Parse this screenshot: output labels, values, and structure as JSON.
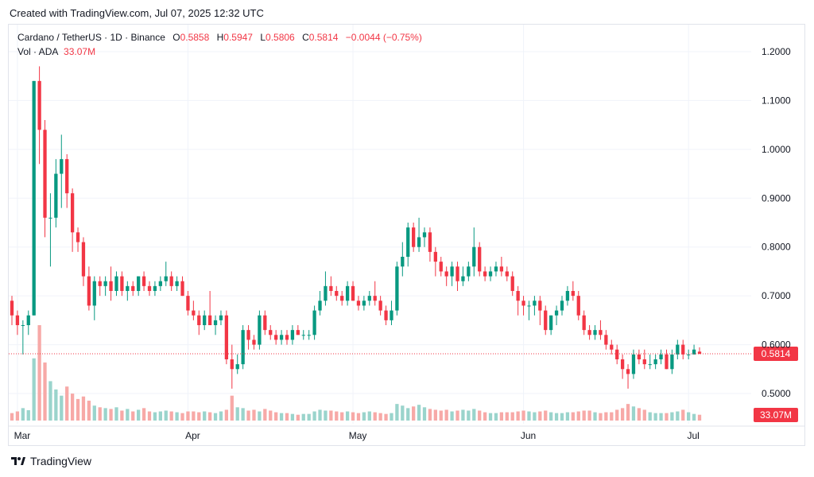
{
  "header": {
    "created_text": "Created with TradingView.com, Jul 07, 2025 12:32 UTC"
  },
  "legend": {
    "symbol": "Cardano / TetherUS · 1D · Binance",
    "open_label": "O",
    "open": "0.5858",
    "high_label": "H",
    "high": "0.5947",
    "low_label": "L",
    "low": "0.5806",
    "close_label": "C",
    "close": "0.5814",
    "change": "−0.0044 (−0.75%)",
    "vol_label": "Vol · ADA",
    "vol_value": "33.07M"
  },
  "footer": {
    "brand": "TradingView"
  },
  "colors": {
    "up": "#089981",
    "down": "#f23645",
    "up_vol": "#9ad4cc",
    "down_vol": "#f7a9a7",
    "grid": "#f0f3fa",
    "text": "#131722"
  },
  "chart_data": {
    "type": "candlestick",
    "title": "Cardano / TetherUS · 1D · Binance",
    "x_ticks": [
      "Mar",
      "Apr",
      "May",
      "Jun",
      "Jul"
    ],
    "y_ticks": [
      "1.2000",
      "1.1000",
      "1.0000",
      "0.9000",
      "0.8000",
      "0.7000",
      "0.6000",
      "0.5000"
    ],
    "ylim": [
      0.46,
      1.25
    ],
    "grid": true,
    "last_price": "0.5814",
    "last_volume": "33.07M",
    "series": [
      {
        "name": "Cardano / TetherUS",
        "ohlc": [
          [
            0.69,
            0.7,
            0.64,
            0.66
          ],
          [
            0.66,
            0.67,
            0.62,
            0.64
          ],
          [
            0.64,
            0.65,
            0.58,
            0.64
          ],
          [
            0.64,
            0.67,
            0.62,
            0.66
          ],
          [
            0.66,
            1.14,
            0.66,
            1.14
          ],
          [
            1.14,
            1.17,
            0.97,
            1.04
          ],
          [
            1.04,
            1.06,
            0.82,
            0.86
          ],
          [
            0.86,
            0.91,
            0.76,
            0.86
          ],
          [
            0.86,
            0.98,
            0.84,
            0.95
          ],
          [
            0.95,
            1.03,
            0.88,
            0.98
          ],
          [
            0.98,
            0.99,
            0.88,
            0.91
          ],
          [
            0.91,
            0.92,
            0.79,
            0.83
          ],
          [
            0.83,
            0.84,
            0.79,
            0.81
          ],
          [
            0.81,
            0.82,
            0.72,
            0.74
          ],
          [
            0.74,
            0.76,
            0.67,
            0.68
          ],
          [
            0.68,
            0.74,
            0.65,
            0.73
          ],
          [
            0.73,
            0.74,
            0.7,
            0.72
          ],
          [
            0.72,
            0.74,
            0.7,
            0.73
          ],
          [
            0.73,
            0.76,
            0.69,
            0.71
          ],
          [
            0.71,
            0.75,
            0.7,
            0.74
          ],
          [
            0.74,
            0.75,
            0.7,
            0.71
          ],
          [
            0.71,
            0.73,
            0.69,
            0.72
          ],
          [
            0.72,
            0.73,
            0.7,
            0.71
          ],
          [
            0.71,
            0.74,
            0.7,
            0.74
          ],
          [
            0.74,
            0.75,
            0.71,
            0.72
          ],
          [
            0.72,
            0.73,
            0.7,
            0.71
          ],
          [
            0.71,
            0.73,
            0.7,
            0.72
          ],
          [
            0.72,
            0.74,
            0.71,
            0.73
          ],
          [
            0.73,
            0.77,
            0.72,
            0.74
          ],
          [
            0.74,
            0.75,
            0.71,
            0.72
          ],
          [
            0.72,
            0.74,
            0.71,
            0.73
          ],
          [
            0.73,
            0.74,
            0.7,
            0.7
          ],
          [
            0.7,
            0.71,
            0.66,
            0.67
          ],
          [
            0.67,
            0.69,
            0.65,
            0.66
          ],
          [
            0.66,
            0.67,
            0.62,
            0.64
          ],
          [
            0.64,
            0.67,
            0.63,
            0.66
          ],
          [
            0.66,
            0.71,
            0.64,
            0.64
          ],
          [
            0.64,
            0.66,
            0.62,
            0.65
          ],
          [
            0.65,
            0.67,
            0.64,
            0.66
          ],
          [
            0.66,
            0.67,
            0.56,
            0.57
          ],
          [
            0.57,
            0.6,
            0.51,
            0.55
          ],
          [
            0.55,
            0.58,
            0.54,
            0.56
          ],
          [
            0.56,
            0.64,
            0.55,
            0.63
          ],
          [
            0.63,
            0.64,
            0.59,
            0.61
          ],
          [
            0.61,
            0.62,
            0.59,
            0.6
          ],
          [
            0.6,
            0.67,
            0.59,
            0.66
          ],
          [
            0.66,
            0.67,
            0.62,
            0.63
          ],
          [
            0.63,
            0.64,
            0.61,
            0.62
          ],
          [
            0.62,
            0.63,
            0.6,
            0.61
          ],
          [
            0.61,
            0.63,
            0.6,
            0.62
          ],
          [
            0.62,
            0.63,
            0.6,
            0.61
          ],
          [
            0.61,
            0.64,
            0.6,
            0.63
          ],
          [
            0.63,
            0.64,
            0.62,
            0.62
          ],
          [
            0.62,
            0.63,
            0.61,
            0.62
          ],
          [
            0.62,
            0.63,
            0.61,
            0.62
          ],
          [
            0.62,
            0.68,
            0.61,
            0.67
          ],
          [
            0.67,
            0.71,
            0.66,
            0.69
          ],
          [
            0.69,
            0.75,
            0.68,
            0.72
          ],
          [
            0.72,
            0.74,
            0.7,
            0.71
          ],
          [
            0.71,
            0.72,
            0.69,
            0.7
          ],
          [
            0.7,
            0.71,
            0.68,
            0.69
          ],
          [
            0.69,
            0.73,
            0.68,
            0.72
          ],
          [
            0.72,
            0.73,
            0.69,
            0.69
          ],
          [
            0.69,
            0.7,
            0.67,
            0.68
          ],
          [
            0.68,
            0.7,
            0.67,
            0.69
          ],
          [
            0.69,
            0.71,
            0.68,
            0.7
          ],
          [
            0.7,
            0.73,
            0.68,
            0.69
          ],
          [
            0.69,
            0.7,
            0.66,
            0.67
          ],
          [
            0.67,
            0.68,
            0.64,
            0.65
          ],
          [
            0.65,
            0.69,
            0.64,
            0.67
          ],
          [
            0.67,
            0.77,
            0.66,
            0.76
          ],
          [
            0.76,
            0.81,
            0.74,
            0.78
          ],
          [
            0.78,
            0.85,
            0.76,
            0.84
          ],
          [
            0.84,
            0.85,
            0.79,
            0.8
          ],
          [
            0.8,
            0.86,
            0.79,
            0.82
          ],
          [
            0.82,
            0.84,
            0.8,
            0.83
          ],
          [
            0.83,
            0.84,
            0.77,
            0.79
          ],
          [
            0.79,
            0.8,
            0.74,
            0.77
          ],
          [
            0.77,
            0.78,
            0.74,
            0.75
          ],
          [
            0.75,
            0.76,
            0.72,
            0.74
          ],
          [
            0.74,
            0.77,
            0.72,
            0.76
          ],
          [
            0.76,
            0.77,
            0.71,
            0.73
          ],
          [
            0.73,
            0.76,
            0.72,
            0.74
          ],
          [
            0.74,
            0.77,
            0.73,
            0.76
          ],
          [
            0.76,
            0.84,
            0.74,
            0.8
          ],
          [
            0.8,
            0.81,
            0.74,
            0.75
          ],
          [
            0.75,
            0.76,
            0.73,
            0.74
          ],
          [
            0.74,
            0.76,
            0.73,
            0.75
          ],
          [
            0.75,
            0.77,
            0.74,
            0.76
          ],
          [
            0.76,
            0.78,
            0.74,
            0.75
          ],
          [
            0.75,
            0.76,
            0.73,
            0.74
          ],
          [
            0.74,
            0.75,
            0.7,
            0.71
          ],
          [
            0.71,
            0.72,
            0.66,
            0.69
          ],
          [
            0.69,
            0.7,
            0.66,
            0.68
          ],
          [
            0.68,
            0.69,
            0.65,
            0.68
          ],
          [
            0.68,
            0.7,
            0.66,
            0.69
          ],
          [
            0.69,
            0.7,
            0.64,
            0.67
          ],
          [
            0.67,
            0.68,
            0.62,
            0.63
          ],
          [
            0.63,
            0.66,
            0.62,
            0.66
          ],
          [
            0.66,
            0.68,
            0.64,
            0.67
          ],
          [
            0.67,
            0.7,
            0.66,
            0.69
          ],
          [
            0.69,
            0.72,
            0.68,
            0.71
          ],
          [
            0.71,
            0.73,
            0.69,
            0.7
          ],
          [
            0.7,
            0.71,
            0.65,
            0.66
          ],
          [
            0.66,
            0.67,
            0.62,
            0.63
          ],
          [
            0.63,
            0.64,
            0.61,
            0.62
          ],
          [
            0.62,
            0.64,
            0.61,
            0.63
          ],
          [
            0.63,
            0.65,
            0.61,
            0.62
          ],
          [
            0.62,
            0.63,
            0.59,
            0.6
          ],
          [
            0.6,
            0.61,
            0.58,
            0.59
          ],
          [
            0.59,
            0.6,
            0.56,
            0.57
          ],
          [
            0.57,
            0.58,
            0.53,
            0.55
          ],
          [
            0.55,
            0.56,
            0.51,
            0.54
          ],
          [
            0.54,
            0.59,
            0.53,
            0.58
          ],
          [
            0.58,
            0.59,
            0.56,
            0.57
          ],
          [
            0.57,
            0.59,
            0.55,
            0.56
          ],
          [
            0.56,
            0.58,
            0.55,
            0.56
          ],
          [
            0.56,
            0.58,
            0.55,
            0.57
          ],
          [
            0.57,
            0.59,
            0.56,
            0.58
          ],
          [
            0.58,
            0.59,
            0.55,
            0.55
          ],
          [
            0.55,
            0.59,
            0.54,
            0.58
          ],
          [
            0.58,
            0.61,
            0.57,
            0.6
          ],
          [
            0.6,
            0.61,
            0.57,
            0.58
          ],
          [
            0.58,
            0.59,
            0.57,
            0.58
          ],
          [
            0.58,
            0.6,
            0.58,
            0.59
          ],
          [
            0.5858,
            0.5947,
            0.5806,
            0.5814
          ]
        ],
        "volume": [
          18,
          22,
          30,
          25,
          150,
          230,
          140,
          95,
          75,
          60,
          82,
          65,
          52,
          58,
          48,
          36,
          32,
          30,
          28,
          32,
          24,
          28,
          22,
          26,
          30,
          22,
          20,
          22,
          24,
          22,
          20,
          18,
          22,
          22,
          20,
          22,
          20,
          18,
          22,
          26,
          60,
          32,
          30,
          24,
          26,
          22,
          28,
          24,
          20,
          18,
          18,
          16,
          14,
          16,
          16,
          22,
          26,
          24,
          24,
          22,
          20,
          22,
          20,
          18,
          20,
          22,
          20,
          18,
          16,
          18,
          40,
          36,
          30,
          34,
          38,
          32,
          28,
          26,
          24,
          26,
          22,
          24,
          26,
          24,
          28,
          24,
          20,
          18,
          18,
          20,
          20,
          20,
          22,
          24,
          22,
          20,
          22,
          24,
          20,
          18,
          18,
          20,
          20,
          22,
          24,
          24,
          20,
          18,
          20,
          20,
          26,
          30,
          40,
          34,
          30,
          26,
          20,
          18,
          18,
          18,
          20,
          22,
          26,
          20,
          16,
          14
        ]
      }
    ]
  }
}
